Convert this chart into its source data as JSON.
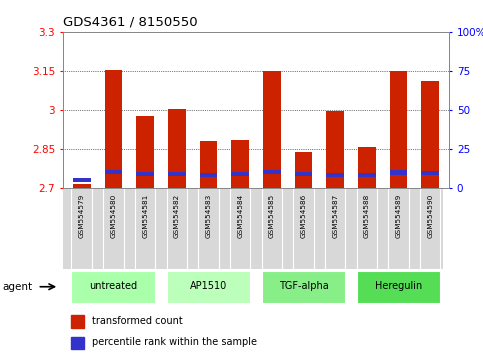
{
  "title": "GDS4361 / 8150550",
  "samples": [
    "GSM554579",
    "GSM554580",
    "GSM554581",
    "GSM554582",
    "GSM554583",
    "GSM554584",
    "GSM554585",
    "GSM554586",
    "GSM554587",
    "GSM554588",
    "GSM554589",
    "GSM554590"
  ],
  "red_values": [
    2.714,
    3.153,
    2.975,
    3.002,
    2.878,
    2.884,
    3.15,
    2.837,
    2.995,
    2.855,
    3.148,
    3.112
  ],
  "blue_values": [
    2.728,
    2.76,
    2.752,
    2.752,
    2.748,
    2.752,
    2.759,
    2.753,
    2.749,
    2.748,
    2.758,
    2.757
  ],
  "ymin": 2.7,
  "ymax": 3.3,
  "yticks": [
    2.7,
    2.85,
    3.0,
    3.15,
    3.3
  ],
  "ytick_labels": [
    "2.7",
    "2.85",
    "3",
    "3.15",
    "3.3"
  ],
  "right_yticks": [
    0,
    25,
    50,
    75,
    100
  ],
  "right_ytick_labels": [
    "0",
    "25",
    "50",
    "75",
    "100%"
  ],
  "groups": [
    {
      "label": "untreated",
      "start": 0,
      "end": 2
    },
    {
      "label": "AP1510",
      "start": 3,
      "end": 5
    },
    {
      "label": "TGF-alpha",
      "start": 6,
      "end": 8
    },
    {
      "label": "Heregulin",
      "start": 9,
      "end": 11
    }
  ],
  "group_colors": [
    "#aaffaa",
    "#bbffbb",
    "#88ee88",
    "#55dd55"
  ],
  "red_color": "#cc2200",
  "blue_color": "#3333cc",
  "bar_width": 0.55,
  "agent_label": "agent",
  "legend_red": "transformed count",
  "legend_blue": "percentile rank within the sample"
}
